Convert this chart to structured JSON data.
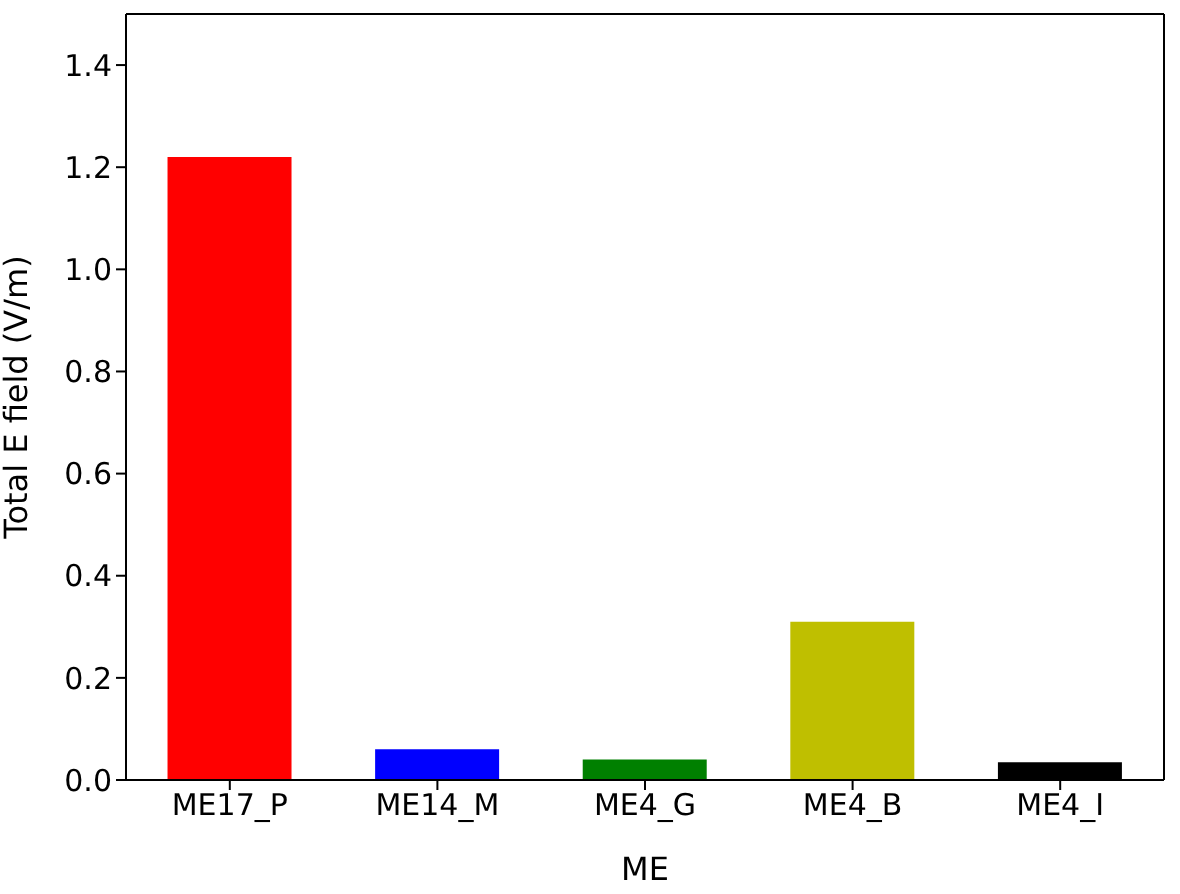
{
  "chart_data": {
    "type": "bar",
    "xlabel": "ME",
    "ylabel": "Total E field (V/m)",
    "categories": [
      "ME17_P",
      "ME14_M",
      "ME4_G",
      "ME4_B",
      "ME4_I"
    ],
    "values": [
      1.22,
      0.06,
      0.04,
      0.31,
      0.035
    ],
    "colors": [
      "#ff0000",
      "#0000ff",
      "#008000",
      "#bfbf00",
      "#000000"
    ],
    "ylim": [
      0,
      1.5
    ],
    "yticks": [
      {
        "value": 0,
        "label": "0.0"
      },
      0.2,
      0.4,
      0.6,
      0.8,
      {
        "value": 1,
        "label": "1.0"
      },
      1.2,
      1.4
    ],
    "grid": false,
    "legend": false
  }
}
